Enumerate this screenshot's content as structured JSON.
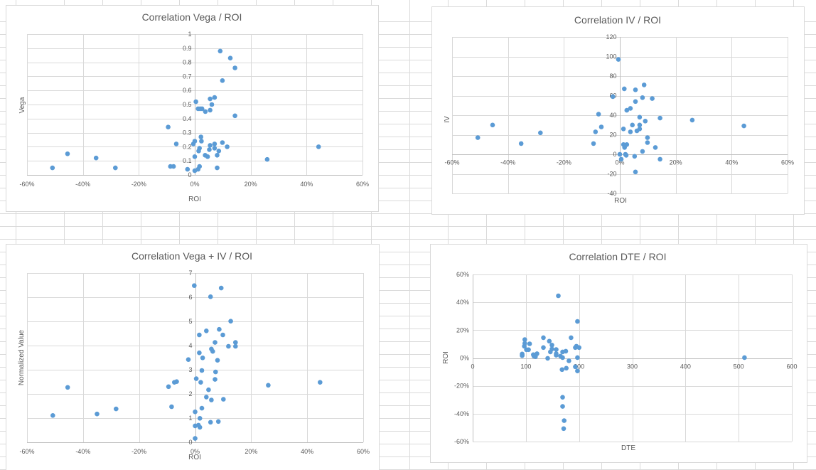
{
  "colors": {
    "marker": "#5b9bd5",
    "gridline": "#d9d9d9",
    "axis": "#bfbfbf",
    "text": "#595959"
  },
  "chart_data": [
    {
      "id": "vega",
      "type": "scatter",
      "title": "Correlation Vega / ROI",
      "xlabel": "ROI",
      "ylabel": "Vega",
      "xlim": [
        -0.6,
        0.6
      ],
      "ylim": [
        0,
        1
      ],
      "x_step": 0.2,
      "y_step": 0.1,
      "grid": true,
      "x_ticks": [
        "-60%",
        "-40%",
        "-20%",
        "0%",
        "20%",
        "40%",
        "60%"
      ],
      "y_ticks": [
        "0",
        "0.1",
        "0.2",
        "0.3",
        "0.4",
        "0.5",
        "0.6",
        "0.7",
        "0.8",
        "0.9",
        "1"
      ],
      "points": [
        [
          -0.509,
          0.05
        ],
        [
          -0.455,
          0.15
        ],
        [
          -0.353,
          0.12
        ],
        [
          -0.284,
          0.05
        ],
        [
          -0.095,
          0.34
        ],
        [
          -0.066,
          0.22
        ],
        [
          -0.087,
          0.06
        ],
        [
          -0.076,
          0.06
        ],
        [
          -0.026,
          0.04
        ],
        [
          -0.005,
          0.22
        ],
        [
          0,
          0.24
        ],
        [
          0,
          0.13
        ],
        [
          0,
          0.03
        ],
        [
          0.004,
          0.52
        ],
        [
          0.012,
          0.47
        ],
        [
          0.019,
          0.47
        ],
        [
          0.026,
          0.47
        ],
        [
          0.038,
          0.45
        ],
        [
          0.055,
          0.54
        ],
        [
          0.071,
          0.55
        ],
        [
          0.061,
          0.5
        ],
        [
          0.055,
          0.46
        ],
        [
          0.091,
          0.88
        ],
        [
          0.127,
          0.83
        ],
        [
          0.144,
          0.76
        ],
        [
          0.099,
          0.67
        ],
        [
          0.144,
          0.42
        ],
        [
          0.022,
          0.27
        ],
        [
          0.024,
          0.24
        ],
        [
          0.017,
          0.19
        ],
        [
          0.014,
          0.17
        ],
        [
          0.055,
          0.21
        ],
        [
          0.052,
          0.18
        ],
        [
          0.071,
          0.22
        ],
        [
          0.071,
          0.19
        ],
        [
          0.099,
          0.23
        ],
        [
          0.116,
          0.2
        ],
        [
          0.086,
          0.17
        ],
        [
          0.037,
          0.14
        ],
        [
          0.046,
          0.13
        ],
        [
          0.08,
          0.14
        ],
        [
          0.08,
          0.05
        ],
        [
          0.017,
          0.06
        ],
        [
          0.012,
          0.04
        ],
        [
          0.259,
          0.11
        ],
        [
          0.443,
          0.2
        ]
      ]
    },
    {
      "id": "iv",
      "type": "scatter",
      "title": "Correlation IV / ROI",
      "xlabel": "ROI",
      "ylabel": "IV",
      "xlim": [
        -0.6,
        0.6
      ],
      "ylim": [
        -40,
        120
      ],
      "x_step": 0.2,
      "y_step": 20,
      "grid": true,
      "x_ticks": [
        "-60%",
        "-40%",
        "-20%",
        "0%",
        "20%",
        "40%",
        "60%"
      ],
      "y_ticks": [
        "-40",
        "-20",
        "0",
        "20",
        "40",
        "60",
        "80",
        "100",
        "120"
      ],
      "points": [
        [
          -0.508,
          17
        ],
        [
          -0.455,
          30
        ],
        [
          -0.353,
          11
        ],
        [
          -0.284,
          22
        ],
        [
          -0.094,
          11
        ],
        [
          -0.087,
          23
        ],
        [
          -0.076,
          41
        ],
        [
          -0.066,
          28
        ],
        [
          -0.025,
          59
        ],
        [
          -0.005,
          97
        ],
        [
          0,
          0
        ],
        [
          0.005,
          -5
        ],
        [
          0.013,
          26
        ],
        [
          0.013,
          10
        ],
        [
          0.016,
          67
        ],
        [
          0.017,
          7
        ],
        [
          0.02,
          0
        ],
        [
          0.023,
          -1
        ],
        [
          0.025,
          45
        ],
        [
          0.025,
          10
        ],
        [
          0.038,
          47
        ],
        [
          0.038,
          23
        ],
        [
          0.045,
          30
        ],
        [
          0.053,
          -2
        ],
        [
          0.056,
          66
        ],
        [
          0.056,
          54
        ],
        [
          0.061,
          24
        ],
        [
          0.071,
          26
        ],
        [
          0.071,
          30
        ],
        [
          0.071,
          38
        ],
        [
          0.081,
          58
        ],
        [
          0.081,
          3
        ],
        [
          0.087,
          71
        ],
        [
          0.091,
          34
        ],
        [
          0.099,
          17
        ],
        [
          0.099,
          12
        ],
        [
          0.116,
          57
        ],
        [
          0.127,
          7
        ],
        [
          0.144,
          37
        ],
        [
          0.144,
          -5
        ],
        [
          0.056,
          -18
        ],
        [
          0.259,
          35
        ],
        [
          0.444,
          29
        ]
      ]
    },
    {
      "id": "vega-iv",
      "type": "scatter",
      "title": "Correlation Vega + IV / ROI",
      "xlabel": "ROI",
      "ylabel": "Normalized Value",
      "xlim": [
        -0.6,
        0.6
      ],
      "ylim": [
        0,
        7
      ],
      "x_step": 0.2,
      "y_step": 1,
      "grid": true,
      "x_ticks": [
        "-60%",
        "-40%",
        "-20%",
        "0%",
        "20%",
        "40%",
        "60%"
      ],
      "y_ticks": [
        "0",
        "1",
        "2",
        "3",
        "4",
        "5",
        "6",
        "7"
      ],
      "points": [
        [
          -0.508,
          1.11
        ],
        [
          -0.455,
          2.27
        ],
        [
          -0.35,
          1.17
        ],
        [
          -0.282,
          1.38
        ],
        [
          -0.095,
          2.3
        ],
        [
          -0.084,
          1.47
        ],
        [
          -0.074,
          2.48
        ],
        [
          -0.066,
          2.51
        ],
        [
          -0.024,
          3.42
        ],
        [
          -0.003,
          6.48
        ],
        [
          0,
          1.26
        ],
        [
          0,
          0.68
        ],
        [
          0,
          0.16
        ],
        [
          0.004,
          2.63
        ],
        [
          0.015,
          4.44
        ],
        [
          0.015,
          3.7
        ],
        [
          0.012,
          0.71
        ],
        [
          0.017,
          0.99
        ],
        [
          0.017,
          0.62
        ],
        [
          0.02,
          2.48
        ],
        [
          0.024,
          2.97
        ],
        [
          0.024,
          1.41
        ],
        [
          0.027,
          3.49
        ],
        [
          0.04,
          4.61
        ],
        [
          0.04,
          1.87
        ],
        [
          0.048,
          2.17
        ],
        [
          0.055,
          6.02
        ],
        [
          0.055,
          0.83
        ],
        [
          0.058,
          3.86
        ],
        [
          0.063,
          3.76
        ],
        [
          0.058,
          1.75
        ],
        [
          0.071,
          4.13
        ],
        [
          0.071,
          2.6
        ],
        [
          0.073,
          2.91
        ],
        [
          0.08,
          3.39
        ],
        [
          0.083,
          0.86
        ],
        [
          0.086,
          4.67
        ],
        [
          0.093,
          6.38
        ],
        [
          0.099,
          4.44
        ],
        [
          0.101,
          1.78
        ],
        [
          0.119,
          3.97
        ],
        [
          0.127,
          5.01
        ],
        [
          0.144,
          4.13
        ],
        [
          0.144,
          3.97
        ],
        [
          0.261,
          2.36
        ],
        [
          0.446,
          2.48
        ]
      ]
    },
    {
      "id": "dte",
      "type": "scatter",
      "title": "Correlation DTE / ROI",
      "xlabel": "DTE",
      "ylabel": "ROI",
      "xlim": [
        0,
        600
      ],
      "ylim": [
        -0.6,
        0.6
      ],
      "x_step": 100,
      "y_step": 0.2,
      "grid": true,
      "x_ticks": [
        "0",
        "100",
        "200",
        "300",
        "400",
        "500",
        "600"
      ],
      "y_ticks": [
        "-60%",
        "-40%",
        "-20%",
        "0%",
        "20%",
        "40%",
        "60%"
      ],
      "points": [
        [
          93,
          0.022
        ],
        [
          93,
          0.029
        ],
        [
          93,
          0.017
        ],
        [
          97,
          0.085
        ],
        [
          98,
          0.133
        ],
        [
          98,
          0.105
        ],
        [
          101,
          0.06
        ],
        [
          105,
          0.06
        ],
        [
          107,
          0.102
        ],
        [
          114,
          0.024
        ],
        [
          115,
          0.014
        ],
        [
          118,
          0.009
        ],
        [
          121,
          0.031
        ],
        [
          133,
          0.146
        ],
        [
          133,
          0.075
        ],
        [
          141,
          -0.002
        ],
        [
          144,
          0.121
        ],
        [
          146,
          0.044
        ],
        [
          149,
          0.093
        ],
        [
          149,
          0.065
        ],
        [
          157,
          0.061
        ],
        [
          157,
          0.031
        ],
        [
          157,
          0.02
        ],
        [
          161,
          0.447
        ],
        [
          165,
          0.014
        ],
        [
          168,
          -0.083
        ],
        [
          169,
          0.044
        ],
        [
          169,
          0.003
        ],
        [
          169,
          -0.282
        ],
        [
          169,
          -0.348
        ],
        [
          172,
          -0.45
        ],
        [
          171,
          -0.507
        ],
        [
          175,
          0.049
        ],
        [
          176,
          -0.073
        ],
        [
          181,
          -0.02
        ],
        [
          185,
          0.146
        ],
        [
          193,
          0.075
        ],
        [
          195,
          0.085
        ],
        [
          197,
          0.003
        ],
        [
          197,
          -0.093
        ],
        [
          197,
          0.263
        ],
        [
          200,
          0.075
        ],
        [
          193,
          -0.063
        ],
        [
          511,
          0.003
        ]
      ]
    }
  ]
}
